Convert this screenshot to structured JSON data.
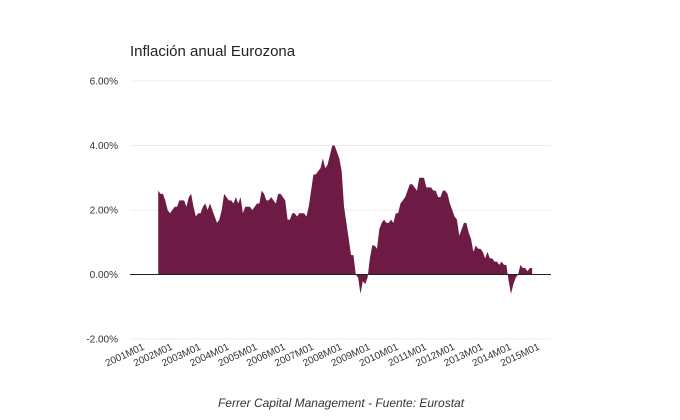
{
  "chart_data": {
    "type": "area",
    "title": "Inflación anual Eurozona",
    "source": "Ferrer Capital Management - Fuente: Eurostat",
    "color": "#6d1a44",
    "ylim": [
      -2,
      6
    ],
    "yticks": [
      6,
      4,
      2,
      0,
      -2
    ],
    "ytick_labels": [
      "6.00%",
      "4.00%",
      "2.00%",
      "0.00%",
      "-2.00%"
    ],
    "xrange": [
      "2001M01",
      "2015M12"
    ],
    "xtick_labels": [
      "2001M01",
      "2002M01",
      "2003M01",
      "2004M01",
      "2005M01",
      "2006M01",
      "2007M01",
      "2008M01",
      "2009M01",
      "2010M01",
      "2011M01",
      "2012M01",
      "2013M01",
      "2014M01",
      "2015M01"
    ],
    "grid": true,
    "series": [
      {
        "start": "2002M01",
        "values": [
          2.6,
          2.5,
          2.5,
          2.3,
          2.0,
          1.9,
          2.0,
          2.1,
          2.1,
          2.3,
          2.3,
          2.3,
          2.1,
          2.4,
          2.5,
          2.1,
          1.8,
          1.9,
          1.9,
          2.1,
          2.2,
          2.0,
          2.2,
          2.0,
          1.8,
          1.6,
          1.7,
          2.0,
          2.5,
          2.4,
          2.3,
          2.3,
          2.2,
          2.4,
          2.2,
          2.4,
          1.9,
          2.1,
          2.1,
          2.1,
          2.0,
          2.1,
          2.2,
          2.2,
          2.6,
          2.5,
          2.3,
          2.3,
          2.4,
          2.3,
          2.2,
          2.5,
          2.5,
          2.4,
          2.3,
          1.7,
          1.7,
          1.9,
          1.9,
          1.8,
          1.9,
          1.9,
          1.9,
          1.8,
          2.1,
          2.6,
          3.1,
          3.1,
          3.2,
          3.3,
          3.6,
          3.3,
          3.4,
          3.7,
          4.0,
          4.0,
          3.8,
          3.6,
          3.2,
          2.1,
          1.6,
          1.1,
          0.6,
          0.6,
          0.0,
          -0.1,
          -0.6,
          -0.2,
          -0.3,
          -0.1,
          0.5,
          0.9,
          0.9,
          0.8,
          1.4,
          1.6,
          1.7,
          1.6,
          1.6,
          1.7,
          1.6,
          1.9,
          1.9,
          2.2,
          2.3,
          2.4,
          2.6,
          2.8,
          2.8,
          2.7,
          2.6,
          3.0,
          3.0,
          3.0,
          2.7,
          2.7,
          2.7,
          2.6,
          2.6,
          2.4,
          2.4,
          2.6,
          2.6,
          2.5,
          2.2,
          2.0,
          1.8,
          1.7,
          1.2,
          1.4,
          1.6,
          1.6,
          1.3,
          1.1,
          0.7,
          0.9,
          0.8,
          0.8,
          0.7,
          0.5,
          0.7,
          0.5,
          0.5,
          0.4,
          0.4,
          0.3,
          0.4,
          0.3,
          0.3,
          -0.2,
          -0.6,
          -0.3,
          -0.1,
          0.0,
          0.3,
          0.2,
          0.2,
          0.1,
          0.2,
          0.2
        ]
      }
    ]
  }
}
